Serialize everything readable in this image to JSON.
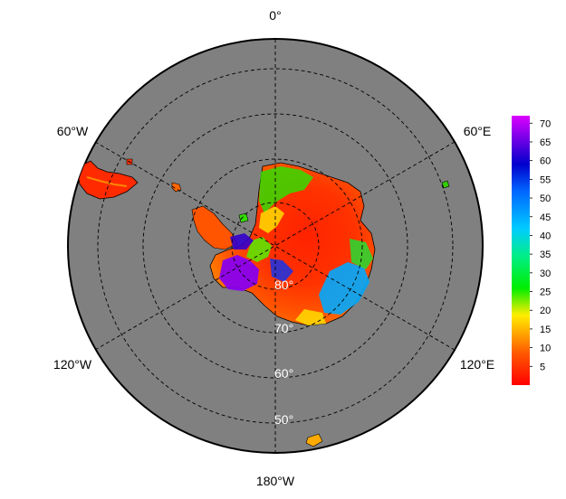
{
  "map": {
    "projection": "south-polar-stereographic",
    "background_color": "#808080",
    "longitude_labels": [
      "0°",
      "60°E",
      "120°E",
      "180°W",
      "120°W",
      "60°W"
    ],
    "latitude_labels": [
      "80°",
      "70°",
      "60°",
      "50°"
    ]
  },
  "colorbar": {
    "min": 0,
    "max": 72,
    "ticks": [
      5,
      10,
      15,
      20,
      25,
      30,
      35,
      40,
      45,
      50,
      55,
      60,
      65,
      70
    ],
    "colormap": [
      "#ff0000",
      "#ff6600",
      "#ffee00",
      "#00dd00",
      "#00ccff",
      "#0000cc",
      "#cc00ff"
    ]
  }
}
